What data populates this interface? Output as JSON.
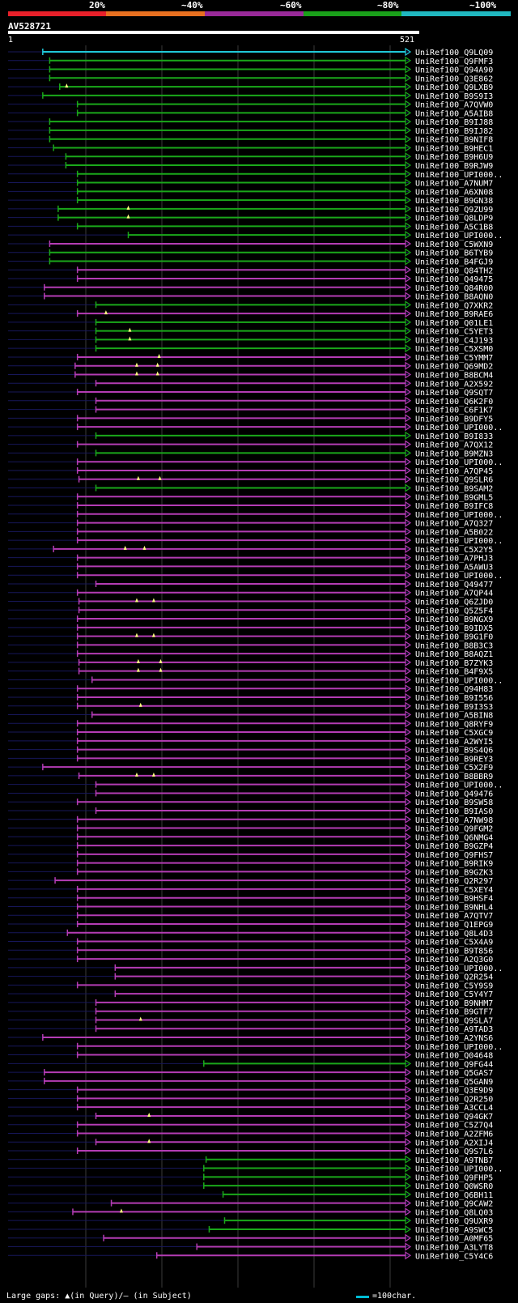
{
  "header": {
    "percent_labels": [
      "20%",
      "~40%",
      "~60%",
      "~80%",
      "~100%"
    ],
    "legend_colors": [
      "#e8202a",
      "#e87020",
      "#9a2a9a",
      "#1aa01a",
      "#20b8c0"
    ],
    "query_id": "AV528721",
    "scale_start": "1",
    "scale_end": "521"
  },
  "footer": {
    "gaps_label": "Large gaps: ▲(in Query)/– (in Subject)",
    "scale_label": "=100char."
  },
  "colors": {
    "cyan": "#20c8d8",
    "green": "#1aa81a",
    "magenta": "#b43cb4",
    "line": "#17175a",
    "grid": "#3a3a3a"
  },
  "chart_data": {
    "type": "alignment",
    "query_length": 521,
    "hits": [
      {
        "id": "UniRef100_Q9LQ09",
        "c": "cyan",
        "s": 46,
        "e": 521
      },
      {
        "id": "UniRef100_Q9FMF3",
        "c": "green",
        "s": 55,
        "e": 521
      },
      {
        "id": "UniRef100_Q94A90",
        "c": "green",
        "s": 55,
        "e": 521
      },
      {
        "id": "UniRef100_Q3E862",
        "c": "green",
        "s": 55,
        "e": 521
      },
      {
        "id": "UniRef100_Q9LXB9",
        "c": "green",
        "s": 68,
        "e": 521,
        "g": [
          77
        ]
      },
      {
        "id": "UniRef100_B9S9I3",
        "c": "green",
        "s": 46,
        "e": 521
      },
      {
        "id": "UniRef100_A7QVW0",
        "c": "green",
        "s": 91,
        "e": 521
      },
      {
        "id": "UniRef100_A5AIB8",
        "c": "green",
        "s": 91,
        "e": 521
      },
      {
        "id": "UniRef100_B9IJ88",
        "c": "green",
        "s": 55,
        "e": 521
      },
      {
        "id": "UniRef100_B9IJ82",
        "c": "green",
        "s": 55,
        "e": 521
      },
      {
        "id": "UniRef100_B9NIF8",
        "c": "green",
        "s": 55,
        "e": 521
      },
      {
        "id": "UniRef100_B9HEC1",
        "c": "green",
        "s": 60,
        "e": 521
      },
      {
        "id": "UniRef100_B9H6U9",
        "c": "green",
        "s": 76,
        "e": 521
      },
      {
        "id": "UniRef100_B9RJW9",
        "c": "green",
        "s": 76,
        "e": 521
      },
      {
        "id": "UniRef100_UPI000..",
        "c": "green",
        "s": 91,
        "e": 521
      },
      {
        "id": "UniRef100_A7NUM7",
        "c": "green",
        "s": 91,
        "e": 521
      },
      {
        "id": "UniRef100_A6XN08",
        "c": "green",
        "s": 91,
        "e": 521
      },
      {
        "id": "UniRef100_B9GN38",
        "c": "green",
        "s": 91,
        "e": 521
      },
      {
        "id": "UniRef100_Q9ZU99",
        "c": "green",
        "s": 66,
        "e": 521,
        "g": [
          157
        ]
      },
      {
        "id": "UniRef100_Q8LDP9",
        "c": "green",
        "s": 66,
        "e": 521,
        "g": [
          157
        ]
      },
      {
        "id": "UniRef100_A5C1B8",
        "c": "green",
        "s": 91,
        "e": 521
      },
      {
        "id": "UniRef100_UPI000..",
        "c": "green",
        "s": 157,
        "e": 521
      },
      {
        "id": "UniRef100_C5WXN9",
        "c": "magenta",
        "s": 55,
        "e": 521
      },
      {
        "id": "UniRef100_B6TYB9",
        "c": "green",
        "s": 55,
        "e": 521
      },
      {
        "id": "UniRef100_B4FGJ9",
        "c": "green",
        "s": 55,
        "e": 521
      },
      {
        "id": "UniRef100_Q84TH2",
        "c": "magenta",
        "s": 91,
        "e": 521
      },
      {
        "id": "UniRef100_Q49475",
        "c": "magenta",
        "s": 91,
        "e": 521
      },
      {
        "id": "UniRef100_Q84R00",
        "c": "magenta",
        "s": 48,
        "e": 521
      },
      {
        "id": "UniRef100_B8AQN0",
        "c": "magenta",
        "s": 48,
        "e": 521
      },
      {
        "id": "UniRef100_Q7XKR2",
        "c": "green",
        "s": 115,
        "e": 521
      },
      {
        "id": "UniRef100_B9RAE6",
        "c": "magenta",
        "s": 91,
        "e": 521,
        "g": [
          128
        ]
      },
      {
        "id": "UniRef100_Q01LE1",
        "c": "green",
        "s": 115,
        "e": 521
      },
      {
        "id": "UniRef100_C5YET3",
        "c": "green",
        "s": 115,
        "e": 521,
        "g": [
          159
        ]
      },
      {
        "id": "UniRef100_C4J193",
        "c": "green",
        "s": 115,
        "e": 521,
        "g": [
          159
        ]
      },
      {
        "id": "UniRef100_C5XSM0",
        "c": "green",
        "s": 115,
        "e": 521
      },
      {
        "id": "UniRef100_C5YMM7",
        "c": "magenta",
        "s": 91,
        "e": 521,
        "g": [
          197
        ]
      },
      {
        "id": "UniRef100_Q69MD2",
        "c": "magenta",
        "s": 88,
        "e": 521,
        "g": [
          168,
          195
        ]
      },
      {
        "id": "UniRef100_B8BCM4",
        "c": "magenta",
        "s": 88,
        "e": 521,
        "g": [
          168,
          195
        ]
      },
      {
        "id": "UniRef100_A2X592",
        "c": "magenta",
        "s": 115,
        "e": 521
      },
      {
        "id": "UniRef100_Q9SQT7",
        "c": "magenta",
        "s": 91,
        "e": 521
      },
      {
        "id": "UniRef100_Q6K2F0",
        "c": "magenta",
        "s": 115,
        "e": 521
      },
      {
        "id": "UniRef100_C6F1K7",
        "c": "magenta",
        "s": 115,
        "e": 521
      },
      {
        "id": "UniRef100_B9DFY5",
        "c": "magenta",
        "s": 91,
        "e": 521
      },
      {
        "id": "UniRef100_UPI000..",
        "c": "magenta",
        "s": 91,
        "e": 521
      },
      {
        "id": "UniRef100_B9I833",
        "c": "green",
        "s": 115,
        "e": 521
      },
      {
        "id": "UniRef100_A7QX12",
        "c": "magenta",
        "s": 91,
        "e": 521
      },
      {
        "id": "UniRef100_B9MZN3",
        "c": "green",
        "s": 115,
        "e": 521
      },
      {
        "id": "UniRef100_UPI000..",
        "c": "magenta",
        "s": 91,
        "e": 521
      },
      {
        "id": "UniRef100_A7QP45",
        "c": "magenta",
        "s": 91,
        "e": 521
      },
      {
        "id": "UniRef100_Q9SLR6",
        "c": "magenta",
        "s": 93,
        "e": 521,
        "g": [
          170,
          198
        ]
      },
      {
        "id": "UniRef100_B9SAM2",
        "c": "green",
        "s": 115,
        "e": 521
      },
      {
        "id": "UniRef100_B9GML5",
        "c": "magenta",
        "s": 91,
        "e": 521
      },
      {
        "id": "UniRef100_B9IFC8",
        "c": "magenta",
        "s": 91,
        "e": 521
      },
      {
        "id": "UniRef100_UPI000..",
        "c": "magenta",
        "s": 91,
        "e": 521
      },
      {
        "id": "UniRef100_A7Q327",
        "c": "magenta",
        "s": 91,
        "e": 521
      },
      {
        "id": "UniRef100_A5B022",
        "c": "magenta",
        "s": 91,
        "e": 521
      },
      {
        "id": "UniRef100_UPI000..",
        "c": "magenta",
        "s": 91,
        "e": 521
      },
      {
        "id": "UniRef100_C5X2Y5",
        "c": "magenta",
        "s": 60,
        "e": 521,
        "g": [
          153,
          178
        ]
      },
      {
        "id": "UniRef100_A7PHJ3",
        "c": "magenta",
        "s": 91,
        "e": 521
      },
      {
        "id": "UniRef100_A5AWU3",
        "c": "magenta",
        "s": 91,
        "e": 521
      },
      {
        "id": "UniRef100_UPI000..",
        "c": "magenta",
        "s": 91,
        "e": 521
      },
      {
        "id": "UniRef100_Q49477",
        "c": "magenta",
        "s": 115,
        "e": 521
      },
      {
        "id": "UniRef100_A7QP44",
        "c": "magenta",
        "s": 91,
        "e": 521
      },
      {
        "id": "UniRef100_Q6ZJD0",
        "c": "magenta",
        "s": 93,
        "e": 521,
        "g": [
          168,
          190
        ]
      },
      {
        "id": "UniRef100_Q5Z5F4",
        "c": "magenta",
        "s": 93,
        "e": 521
      },
      {
        "id": "UniRef100_B9NGX9",
        "c": "magenta",
        "s": 91,
        "e": 521
      },
      {
        "id": "UniRef100_B9IDX5",
        "c": "magenta",
        "s": 91,
        "e": 521
      },
      {
        "id": "UniRef100_B9G1F0",
        "c": "magenta",
        "s": 91,
        "e": 521,
        "g": [
          168,
          190
        ]
      },
      {
        "id": "UniRef100_B8B3C3",
        "c": "magenta",
        "s": 91,
        "e": 521
      },
      {
        "id": "UniRef100_B8AQZ1",
        "c": "magenta",
        "s": 91,
        "e": 521
      },
      {
        "id": "UniRef100_B7ZYK3",
        "c": "magenta",
        "s": 93,
        "e": 521,
        "g": [
          170,
          199
        ]
      },
      {
        "id": "UniRef100_B4F9X5",
        "c": "magenta",
        "s": 93,
        "e": 521,
        "g": [
          170,
          199
        ]
      },
      {
        "id": "UniRef100_UPI000..",
        "c": "magenta",
        "s": 110,
        "e": 521
      },
      {
        "id": "UniRef100_Q94H83",
        "c": "magenta",
        "s": 91,
        "e": 521
      },
      {
        "id": "UniRef100_B9I556",
        "c": "magenta",
        "s": 91,
        "e": 521
      },
      {
        "id": "UniRef100_B9I3S3",
        "c": "magenta",
        "s": 91,
        "e": 521,
        "g": [
          173
        ]
      },
      {
        "id": "UniRef100_A5BIN8",
        "c": "magenta",
        "s": 110,
        "e": 521
      },
      {
        "id": "UniRef100_Q8RYF9",
        "c": "magenta",
        "s": 91,
        "e": 521
      },
      {
        "id": "UniRef100_C5XGC9",
        "c": "magenta",
        "s": 91,
        "e": 521
      },
      {
        "id": "UniRef100_A2WYI5",
        "c": "magenta",
        "s": 91,
        "e": 521
      },
      {
        "id": "UniRef100_B9S4Q6",
        "c": "magenta",
        "s": 91,
        "e": 521
      },
      {
        "id": "UniRef100_B9REY3",
        "c": "magenta",
        "s": 91,
        "e": 521
      },
      {
        "id": "UniRef100_C5X2F9",
        "c": "magenta",
        "s": 46,
        "e": 521
      },
      {
        "id": "UniRef100_B8BBR9",
        "c": "magenta",
        "s": 93,
        "e": 521,
        "g": [
          168,
          190
        ]
      },
      {
        "id": "UniRef100_UPI000..",
        "c": "magenta",
        "s": 115,
        "e": 521
      },
      {
        "id": "UniRef100_Q49476",
        "c": "magenta",
        "s": 115,
        "e": 521
      },
      {
        "id": "UniRef100_B9SW58",
        "c": "magenta",
        "s": 91,
        "e": 521
      },
      {
        "id": "UniRef100_B9IAS0",
        "c": "magenta",
        "s": 115,
        "e": 521
      },
      {
        "id": "UniRef100_A7NW98",
        "c": "magenta",
        "s": 91,
        "e": 521
      },
      {
        "id": "UniRef100_Q9FGM2",
        "c": "magenta",
        "s": 91,
        "e": 521
      },
      {
        "id": "UniRef100_Q6NMG4",
        "c": "magenta",
        "s": 91,
        "e": 521
      },
      {
        "id": "UniRef100_B9GZP4",
        "c": "magenta",
        "s": 91,
        "e": 521
      },
      {
        "id": "UniRef100_Q9FHS7",
        "c": "magenta",
        "s": 91,
        "e": 521
      },
      {
        "id": "UniRef100_B9RIK9",
        "c": "magenta",
        "s": 91,
        "e": 521
      },
      {
        "id": "UniRef100_B9GZK3",
        "c": "magenta",
        "s": 91,
        "e": 521
      },
      {
        "id": "UniRef100_Q2R297",
        "c": "magenta",
        "s": 62,
        "e": 521
      },
      {
        "id": "UniRef100_C5XEY4",
        "c": "magenta",
        "s": 91,
        "e": 521
      },
      {
        "id": "UniRef100_B9HSF4",
        "c": "magenta",
        "s": 91,
        "e": 521
      },
      {
        "id": "UniRef100_B9NHL4",
        "c": "magenta",
        "s": 91,
        "e": 521
      },
      {
        "id": "UniRef100_A7QTV7",
        "c": "magenta",
        "s": 91,
        "e": 521
      },
      {
        "id": "UniRef100_Q1EPG9",
        "c": "magenta",
        "s": 91,
        "e": 521
      },
      {
        "id": "UniRef100_Q8L4D3",
        "c": "magenta",
        "s": 78,
        "e": 521
      },
      {
        "id": "UniRef100_C5X4A9",
        "c": "magenta",
        "s": 91,
        "e": 521
      },
      {
        "id": "UniRef100_B9T856",
        "c": "magenta",
        "s": 91,
        "e": 521
      },
      {
        "id": "UniRef100_A2Q3G0",
        "c": "magenta",
        "s": 91,
        "e": 521
      },
      {
        "id": "UniRef100_UPI000..",
        "c": "magenta",
        "s": 140,
        "e": 521
      },
      {
        "id": "UniRef100_Q2R254",
        "c": "magenta",
        "s": 140,
        "e": 521
      },
      {
        "id": "UniRef100_C5Y9S9",
        "c": "magenta",
        "s": 91,
        "e": 521
      },
      {
        "id": "UniRef100_C5Y4Y7",
        "c": "magenta",
        "s": 140,
        "e": 521
      },
      {
        "id": "UniRef100_B9NHM7",
        "c": "magenta",
        "s": 115,
        "e": 521
      },
      {
        "id": "UniRef100_B9GTF7",
        "c": "magenta",
        "s": 115,
        "e": 521
      },
      {
        "id": "UniRef100_Q9SLA7",
        "c": "magenta",
        "s": 115,
        "e": 521,
        "g": [
          173
        ]
      },
      {
        "id": "UniRef100_A9TAD3",
        "c": "magenta",
        "s": 115,
        "e": 521
      },
      {
        "id": "UniRef100_A2YNS6",
        "c": "magenta",
        "s": 46,
        "e": 521
      },
      {
        "id": "UniRef100_UPI000..",
        "c": "magenta",
        "s": 91,
        "e": 521
      },
      {
        "id": "UniRef100_Q04648",
        "c": "magenta",
        "s": 91,
        "e": 521
      },
      {
        "id": "UniRef100_Q9FG44",
        "c": "green",
        "s": 255,
        "e": 521
      },
      {
        "id": "UniRef100_Q5GAS7",
        "c": "magenta",
        "s": 48,
        "e": 521
      },
      {
        "id": "UniRef100_Q5GAN9",
        "c": "magenta",
        "s": 48,
        "e": 521
      },
      {
        "id": "UniRef100_Q3E9D9",
        "c": "magenta",
        "s": 91,
        "e": 521
      },
      {
        "id": "UniRef100_Q2R250",
        "c": "magenta",
        "s": 91,
        "e": 521
      },
      {
        "id": "UniRef100_A3CCL4",
        "c": "magenta",
        "s": 91,
        "e": 521
      },
      {
        "id": "UniRef100_Q94GK7",
        "c": "magenta",
        "s": 115,
        "e": 521,
        "g": [
          184
        ]
      },
      {
        "id": "UniRef100_C5Z7Q4",
        "c": "magenta",
        "s": 91,
        "e": 521
      },
      {
        "id": "UniRef100_A2ZFM6",
        "c": "magenta",
        "s": 91,
        "e": 521
      },
      {
        "id": "UniRef100_A2XIJ4",
        "c": "magenta",
        "s": 115,
        "e": 521,
        "g": [
          184
        ]
      },
      {
        "id": "UniRef100_Q9S7L6",
        "c": "magenta",
        "s": 91,
        "e": 521
      },
      {
        "id": "UniRef100_A9TNB7",
        "c": "green",
        "s": 258,
        "e": 521
      },
      {
        "id": "UniRef100_UPI000..",
        "c": "green",
        "s": 255,
        "e": 521
      },
      {
        "id": "UniRef100_Q9FHP5",
        "c": "green",
        "s": 255,
        "e": 521
      },
      {
        "id": "UniRef100_Q0WSR0",
        "c": "green",
        "s": 255,
        "e": 521
      },
      {
        "id": "UniRef100_Q6BH11",
        "c": "green",
        "s": 280,
        "e": 521
      },
      {
        "id": "UniRef100_Q9CAW2",
        "c": "magenta",
        "s": 135,
        "e": 521
      },
      {
        "id": "UniRef100_Q8LQ03",
        "c": "magenta",
        "s": 85,
        "e": 521,
        "g": [
          148
        ]
      },
      {
        "id": "UniRef100_Q9UXR9",
        "c": "green",
        "s": 282,
        "e": 521
      },
      {
        "id": "UniRef100_A9SWC5",
        "c": "green",
        "s": 262,
        "e": 521
      },
      {
        "id": "UniRef100_A0MF65",
        "c": "magenta",
        "s": 125,
        "e": 521
      },
      {
        "id": "UniRef100_A3LYT8",
        "c": "magenta",
        "s": 246,
        "e": 521
      },
      {
        "id": "UniRef100_C5Y4C6",
        "c": "magenta",
        "s": 194,
        "e": 521
      }
    ]
  }
}
